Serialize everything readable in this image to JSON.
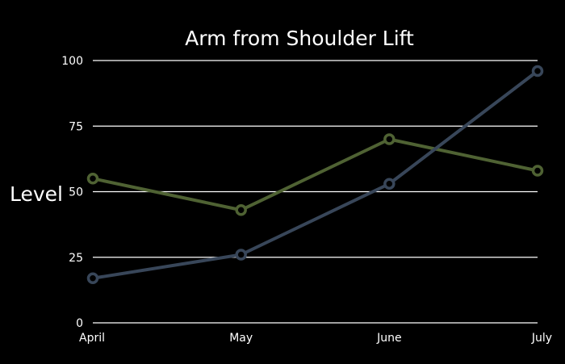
{
  "chart_data": {
    "type": "line",
    "title": "Arm from Shoulder Lift",
    "xlabel": "",
    "ylabel": "Level",
    "categories": [
      "April",
      "May",
      "June",
      "July"
    ],
    "yticks": [
      0,
      25,
      50,
      75,
      100
    ],
    "ylim": [
      0,
      100
    ],
    "grid": true,
    "series": [
      {
        "color": "#4f6233",
        "values": [
          55,
          43,
          70,
          58
        ]
      },
      {
        "color": "#384659",
        "values": [
          17,
          26,
          53,
          96
        ]
      }
    ],
    "colors": {
      "background": "#000000",
      "text": "#ffffff",
      "grid": "#ffffff"
    }
  }
}
